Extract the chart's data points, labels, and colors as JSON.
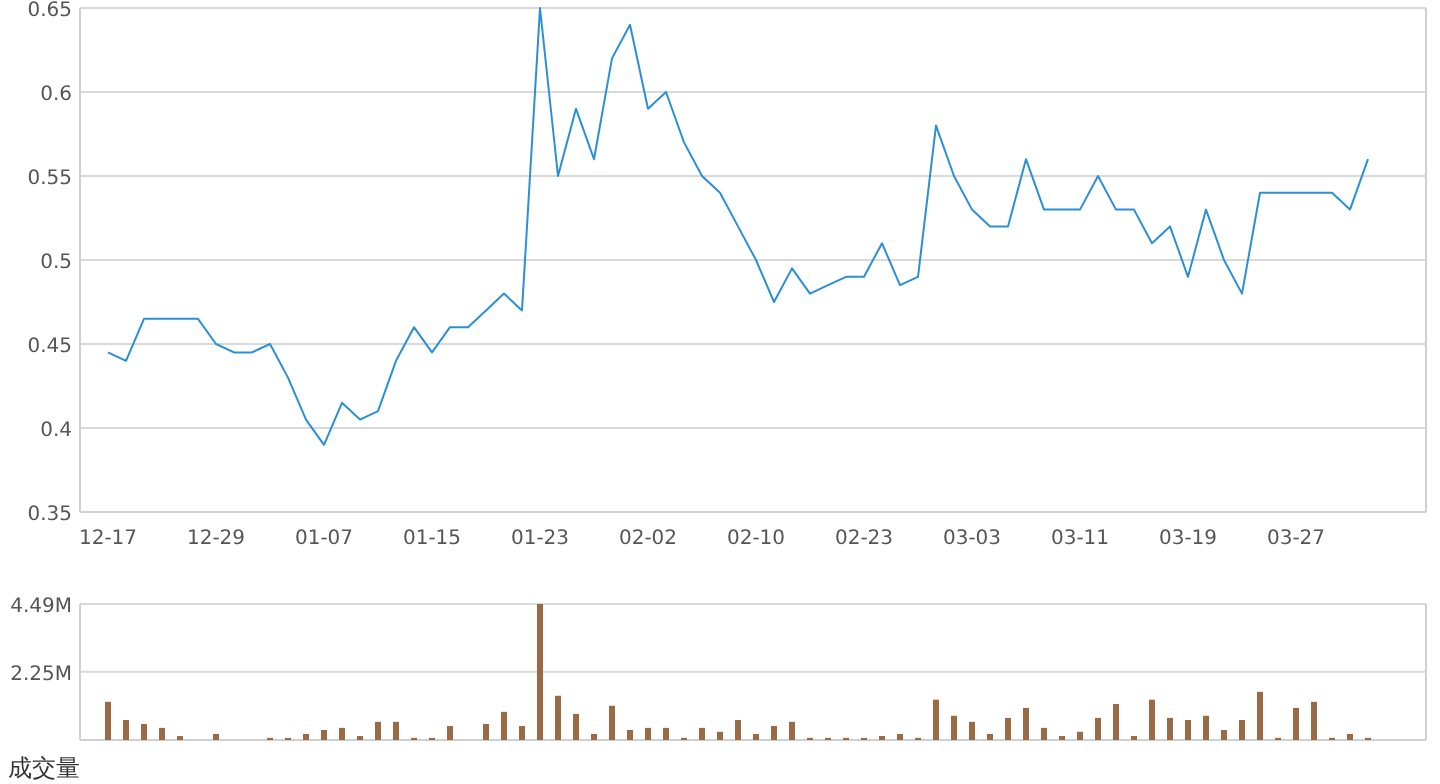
{
  "chart_data": [
    {
      "type": "line",
      "categories": [
        "12-17",
        null,
        null,
        null,
        null,
        null,
        "12-29",
        null,
        null,
        null,
        null,
        null,
        "01-07",
        null,
        null,
        null,
        null,
        null,
        "01-15",
        null,
        null,
        null,
        null,
        null,
        "01-23",
        null,
        null,
        null,
        null,
        null,
        "02-02",
        null,
        null,
        null,
        null,
        null,
        "02-10",
        null,
        null,
        null,
        null,
        null,
        "02-23",
        null,
        null,
        null,
        null,
        null,
        "03-03",
        null,
        null,
        null,
        null,
        null,
        "03-11",
        null,
        null,
        null,
        null,
        null,
        "03-19",
        null,
        null,
        null,
        null,
        null,
        "03-27",
        null,
        null,
        null,
        null
      ],
      "series": [
        {
          "color": "#2b8fd8",
          "values": [
            0.445,
            0.44,
            0.465,
            0.465,
            0.465,
            0.465,
            0.45,
            0.445,
            0.445,
            0.45,
            0.43,
            0.405,
            0.39,
            0.415,
            0.405,
            0.41,
            0.44,
            0.46,
            0.445,
            0.46,
            0.46,
            0.47,
            0.48,
            0.47,
            0.65,
            0.55,
            0.59,
            0.56,
            0.62,
            0.64,
            0.59,
            0.6,
            0.57,
            0.55,
            0.54,
            0.52,
            0.5,
            0.475,
            0.495,
            0.48,
            0.485,
            0.49,
            0.49,
            0.51,
            0.485,
            0.49,
            0.58,
            0.55,
            0.53,
            0.52,
            0.52,
            0.56,
            0.53,
            0.53,
            0.53,
            0.55,
            0.53,
            0.53,
            0.51,
            0.52,
            0.49,
            0.53,
            0.5,
            0.48,
            0.54,
            0.54,
            0.54,
            0.54,
            0.54,
            0.53,
            0.56
          ]
        }
      ],
      "ylim": [
        0.35,
        0.65
      ],
      "yticks": [
        0.35,
        0.4,
        0.45,
        0.5,
        0.55,
        0.6,
        0.65
      ],
      "grid": "y",
      "marker": "none",
      "line_style": "solid"
    },
    {
      "type": "bar",
      "xlabel": "成交量",
      "categories": [
        null,
        null,
        null,
        null,
        null,
        null,
        null,
        null,
        null,
        null,
        null,
        null,
        null,
        null,
        null,
        null,
        null,
        null,
        null,
        null,
        null,
        null,
        null,
        null,
        null,
        null,
        null,
        null,
        null,
        null,
        null,
        null,
        null,
        null,
        null,
        null,
        null,
        null,
        null,
        null,
        null,
        null,
        null,
        null,
        null,
        null,
        null,
        null,
        null,
        null,
        null,
        null,
        null,
        null,
        null,
        null,
        null,
        null,
        null,
        null,
        null,
        null,
        null,
        null,
        null,
        null,
        null,
        null,
        null,
        null,
        null
      ],
      "series": [
        {
          "color": "#9a6a44",
          "values": [
            1.26,
            0.66,
            0.53,
            0.4,
            0.13,
            0,
            0.2,
            0,
            0,
            0.07,
            0.07,
            0.2,
            0.33,
            0.4,
            0.13,
            0.6,
            0.6,
            0.07,
            0.07,
            0.46,
            0,
            0.53,
            0.93,
            0.46,
            4.49,
            1.46,
            0.86,
            0.2,
            1.13,
            0.33,
            0.4,
            0.4,
            0.07,
            0.4,
            0.27,
            0.66,
            0.2,
            0.46,
            0.6,
            0.07,
            0.07,
            0.07,
            0.07,
            0.13,
            0.2,
            0.07,
            1.33,
            0.8,
            0.6,
            0.2,
            0.73,
            1.06,
            0.4,
            0.13,
            0.27,
            0.73,
            1.19,
            0.13,
            1.33,
            0.73,
            0.66,
            0.8,
            0.33,
            0.66,
            1.59,
            0.07,
            1.06,
            1.26,
            0.07,
            0.2,
            0.07
          ]
        }
      ],
      "ylim": [
        0,
        4.49
      ],
      "yticks": [
        {
          "value": 2.25,
          "label": "2.25M"
        },
        {
          "value": 4.49,
          "label": "4.49M"
        }
      ],
      "grid": "y",
      "tick_labels": "y"
    }
  ]
}
